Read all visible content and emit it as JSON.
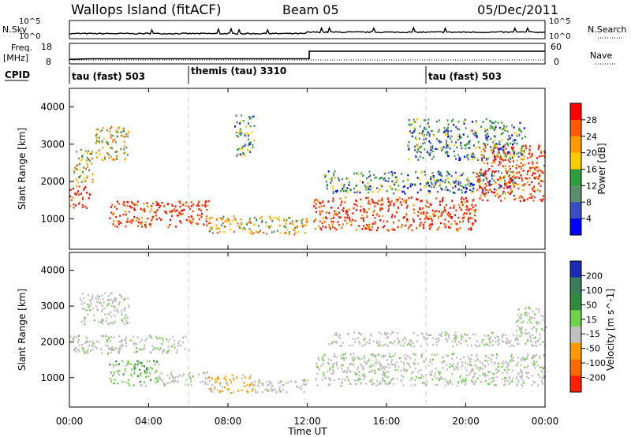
{
  "header": {
    "station": "Wallops Island (fitACF)",
    "beam": "Beam 05",
    "date": "05/Dec/2011"
  },
  "top_panels": {
    "nsky_label": "N.Sky",
    "nsky_ticks": [
      "10^5",
      "10^0"
    ],
    "nsearch_label": "N.Search",
    "nsearch_ticks": [
      "10^5",
      "10^0"
    ],
    "freq_label": "Freq.",
    "freq_unit": "[MHz]",
    "freq_ticks": [
      "18",
      "8"
    ],
    "nave_label": "Nave",
    "nave_ticks": [
      "60",
      "0"
    ],
    "cpid_label": "CPID",
    "cpid_segments": [
      {
        "label": "tau (fast) 503",
        "start_hour": 0
      },
      {
        "label": "themis (tau) 3310",
        "start_hour": 6
      },
      {
        "label": "tau (fast) 503",
        "start_hour": 18
      }
    ]
  },
  "x_axis": {
    "title": "Time UT",
    "ticks": [
      "00:00",
      "04:00",
      "08:00",
      "12:00",
      "16:00",
      "20:00",
      "00:00"
    ]
  },
  "colors": {
    "dashed_line": "#cccccc"
  },
  "chart_data": [
    {
      "type": "heatmap",
      "panel": "power",
      "ylabel": "Slant Range [km]",
      "yticks": [
        "4000",
        "3000",
        "2000",
        "1000"
      ],
      "ylim": [
        180,
        4500
      ],
      "xlim": [
        0,
        24
      ],
      "colorbar_label": "Power [dB]",
      "colorbar_ticks": [
        "28",
        "24",
        "20",
        "16",
        "12",
        "8",
        "4"
      ],
      "colorbar_colors": [
        "#ff0000",
        "#ff5a00",
        "#ff9a00",
        "#ffcc00",
        "#2e9d3c",
        "#5a8f6a",
        "#3a4fbf",
        "#0000ff"
      ],
      "regions": [
        {
          "t": [
            0.0,
            1.0
          ],
          "r": [
            1300,
            1900
          ],
          "level": "high"
        },
        {
          "t": [
            0.2,
            1.2
          ],
          "r": [
            2000,
            2900
          ],
          "level": "mid"
        },
        {
          "t": [
            1.3,
            3.0
          ],
          "r": [
            2600,
            3500
          ],
          "level": "mid"
        },
        {
          "t": [
            2.0,
            7.0
          ],
          "r": [
            800,
            1500
          ],
          "level": "high"
        },
        {
          "t": [
            7.0,
            12.0
          ],
          "r": [
            600,
            1100
          ],
          "level": "mid"
        },
        {
          "t": [
            8.3,
            9.3
          ],
          "r": [
            2700,
            3800
          ],
          "level": "low"
        },
        {
          "t": [
            12.3,
            20.5
          ],
          "r": [
            700,
            1600
          ],
          "level": "high"
        },
        {
          "t": [
            12.8,
            22.5
          ],
          "r": [
            1700,
            2300
          ],
          "level": "low"
        },
        {
          "t": [
            20.5,
            24.0
          ],
          "r": [
            1500,
            3000
          ],
          "level": "high"
        },
        {
          "t": [
            17.0,
            23.0
          ],
          "r": [
            2600,
            3700
          ],
          "level": "low"
        }
      ]
    },
    {
      "type": "heatmap",
      "panel": "velocity",
      "ylabel": "Slant Range [km]",
      "yticks": [
        "4000",
        "3000",
        "2000",
        "1000"
      ],
      "ylim": [
        180,
        4500
      ],
      "xlim": [
        0,
        24
      ],
      "colorbar_label": "Velocity [m s^-1]",
      "colorbar_ticks": [
        "200",
        "100",
        "50",
        "15",
        "-15",
        "-50",
        "-100",
        "-200"
      ],
      "colorbar_colors": [
        "#1a2db5",
        "#3a7d5a",
        "#2e8b3c",
        "#6fd24a",
        "#c0c0c0",
        "#ff9a00",
        "#ff6a00",
        "#ff2000"
      ],
      "regions": [
        {
          "t": [
            0.0,
            6.0
          ],
          "r": [
            1700,
            2200
          ],
          "v": "zero"
        },
        {
          "t": [
            0.5,
            3.0
          ],
          "r": [
            2500,
            3400
          ],
          "v": "zero"
        },
        {
          "t": [
            2.0,
            4.5
          ],
          "r": [
            800,
            1500
          ],
          "v": "pos"
        },
        {
          "t": [
            4.5,
            7.0
          ],
          "r": [
            800,
            1200
          ],
          "v": "zero"
        },
        {
          "t": [
            7.0,
            9.3
          ],
          "r": [
            600,
            1100
          ],
          "v": "neg"
        },
        {
          "t": [
            9.3,
            12.0
          ],
          "r": [
            600,
            1000
          ],
          "v": "zero"
        },
        {
          "t": [
            12.3,
            24.0
          ],
          "r": [
            800,
            1700
          ],
          "v": "zero"
        },
        {
          "t": [
            13.0,
            24.0
          ],
          "r": [
            1900,
            2300
          ],
          "v": "zero"
        },
        {
          "t": [
            22.5,
            24.0
          ],
          "r": [
            2300,
            3000
          ],
          "v": "zero"
        }
      ]
    },
    {
      "type": "line",
      "panel": "nsky",
      "series": [
        {
          "x": [
            0,
            12,
            24
          ],
          "y": [
            0.3,
            0.4,
            0.35
          ]
        }
      ]
    },
    {
      "type": "line",
      "panel": "frequency",
      "series": [
        {
          "x": [
            0,
            1,
            12.1,
            12.1,
            24
          ],
          "y": [
            10.2,
            10.5,
            10.5,
            14.2,
            14.2
          ]
        }
      ]
    }
  ]
}
